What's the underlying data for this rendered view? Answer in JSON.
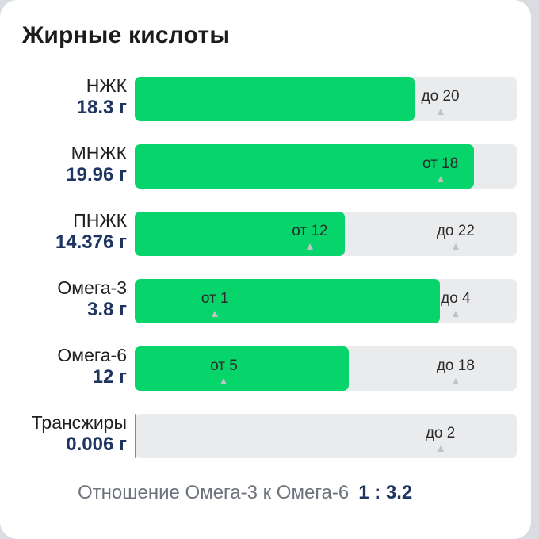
{
  "title": "Жирные кислоты",
  "colors": {
    "fill": "#07d56b",
    "track": "#eaebed",
    "amount": "#1f3561"
  },
  "rows": [
    {
      "name": "НЖК",
      "amount": "18.3 г",
      "value": 18.3,
      "markers": [
        {
          "text": "до 20",
          "value": 20
        }
      ]
    },
    {
      "name": "МНЖК",
      "amount": "19.96 г",
      "value": 19.96,
      "markers": [
        {
          "text": "от 18",
          "value": 18
        }
      ]
    },
    {
      "name": "ПНЖК",
      "amount": "14.376 г",
      "value": 14.376,
      "markers": [
        {
          "text": "от 12",
          "value": 12
        },
        {
          "text": "до 22",
          "value": 22
        }
      ]
    },
    {
      "name": "Омега-3",
      "amount": "3.8 г",
      "value": 3.8,
      "markers": [
        {
          "text": "от 1",
          "value": 1
        },
        {
          "text": "до 4",
          "value": 4
        }
      ]
    },
    {
      "name": "Омега-6",
      "amount": "12 г",
      "value": 12,
      "markers": [
        {
          "text": "от 5",
          "value": 5
        },
        {
          "text": "до 18",
          "value": 18
        }
      ]
    },
    {
      "name": "Трансжиры",
      "amount": "0.006 г",
      "value": 0.006,
      "markers": [
        {
          "text": "до 2",
          "value": 2
        }
      ]
    }
  ],
  "ratio": {
    "label": "Отношение Омега-3 к Омега-6",
    "value": "1 : 3.2"
  }
}
